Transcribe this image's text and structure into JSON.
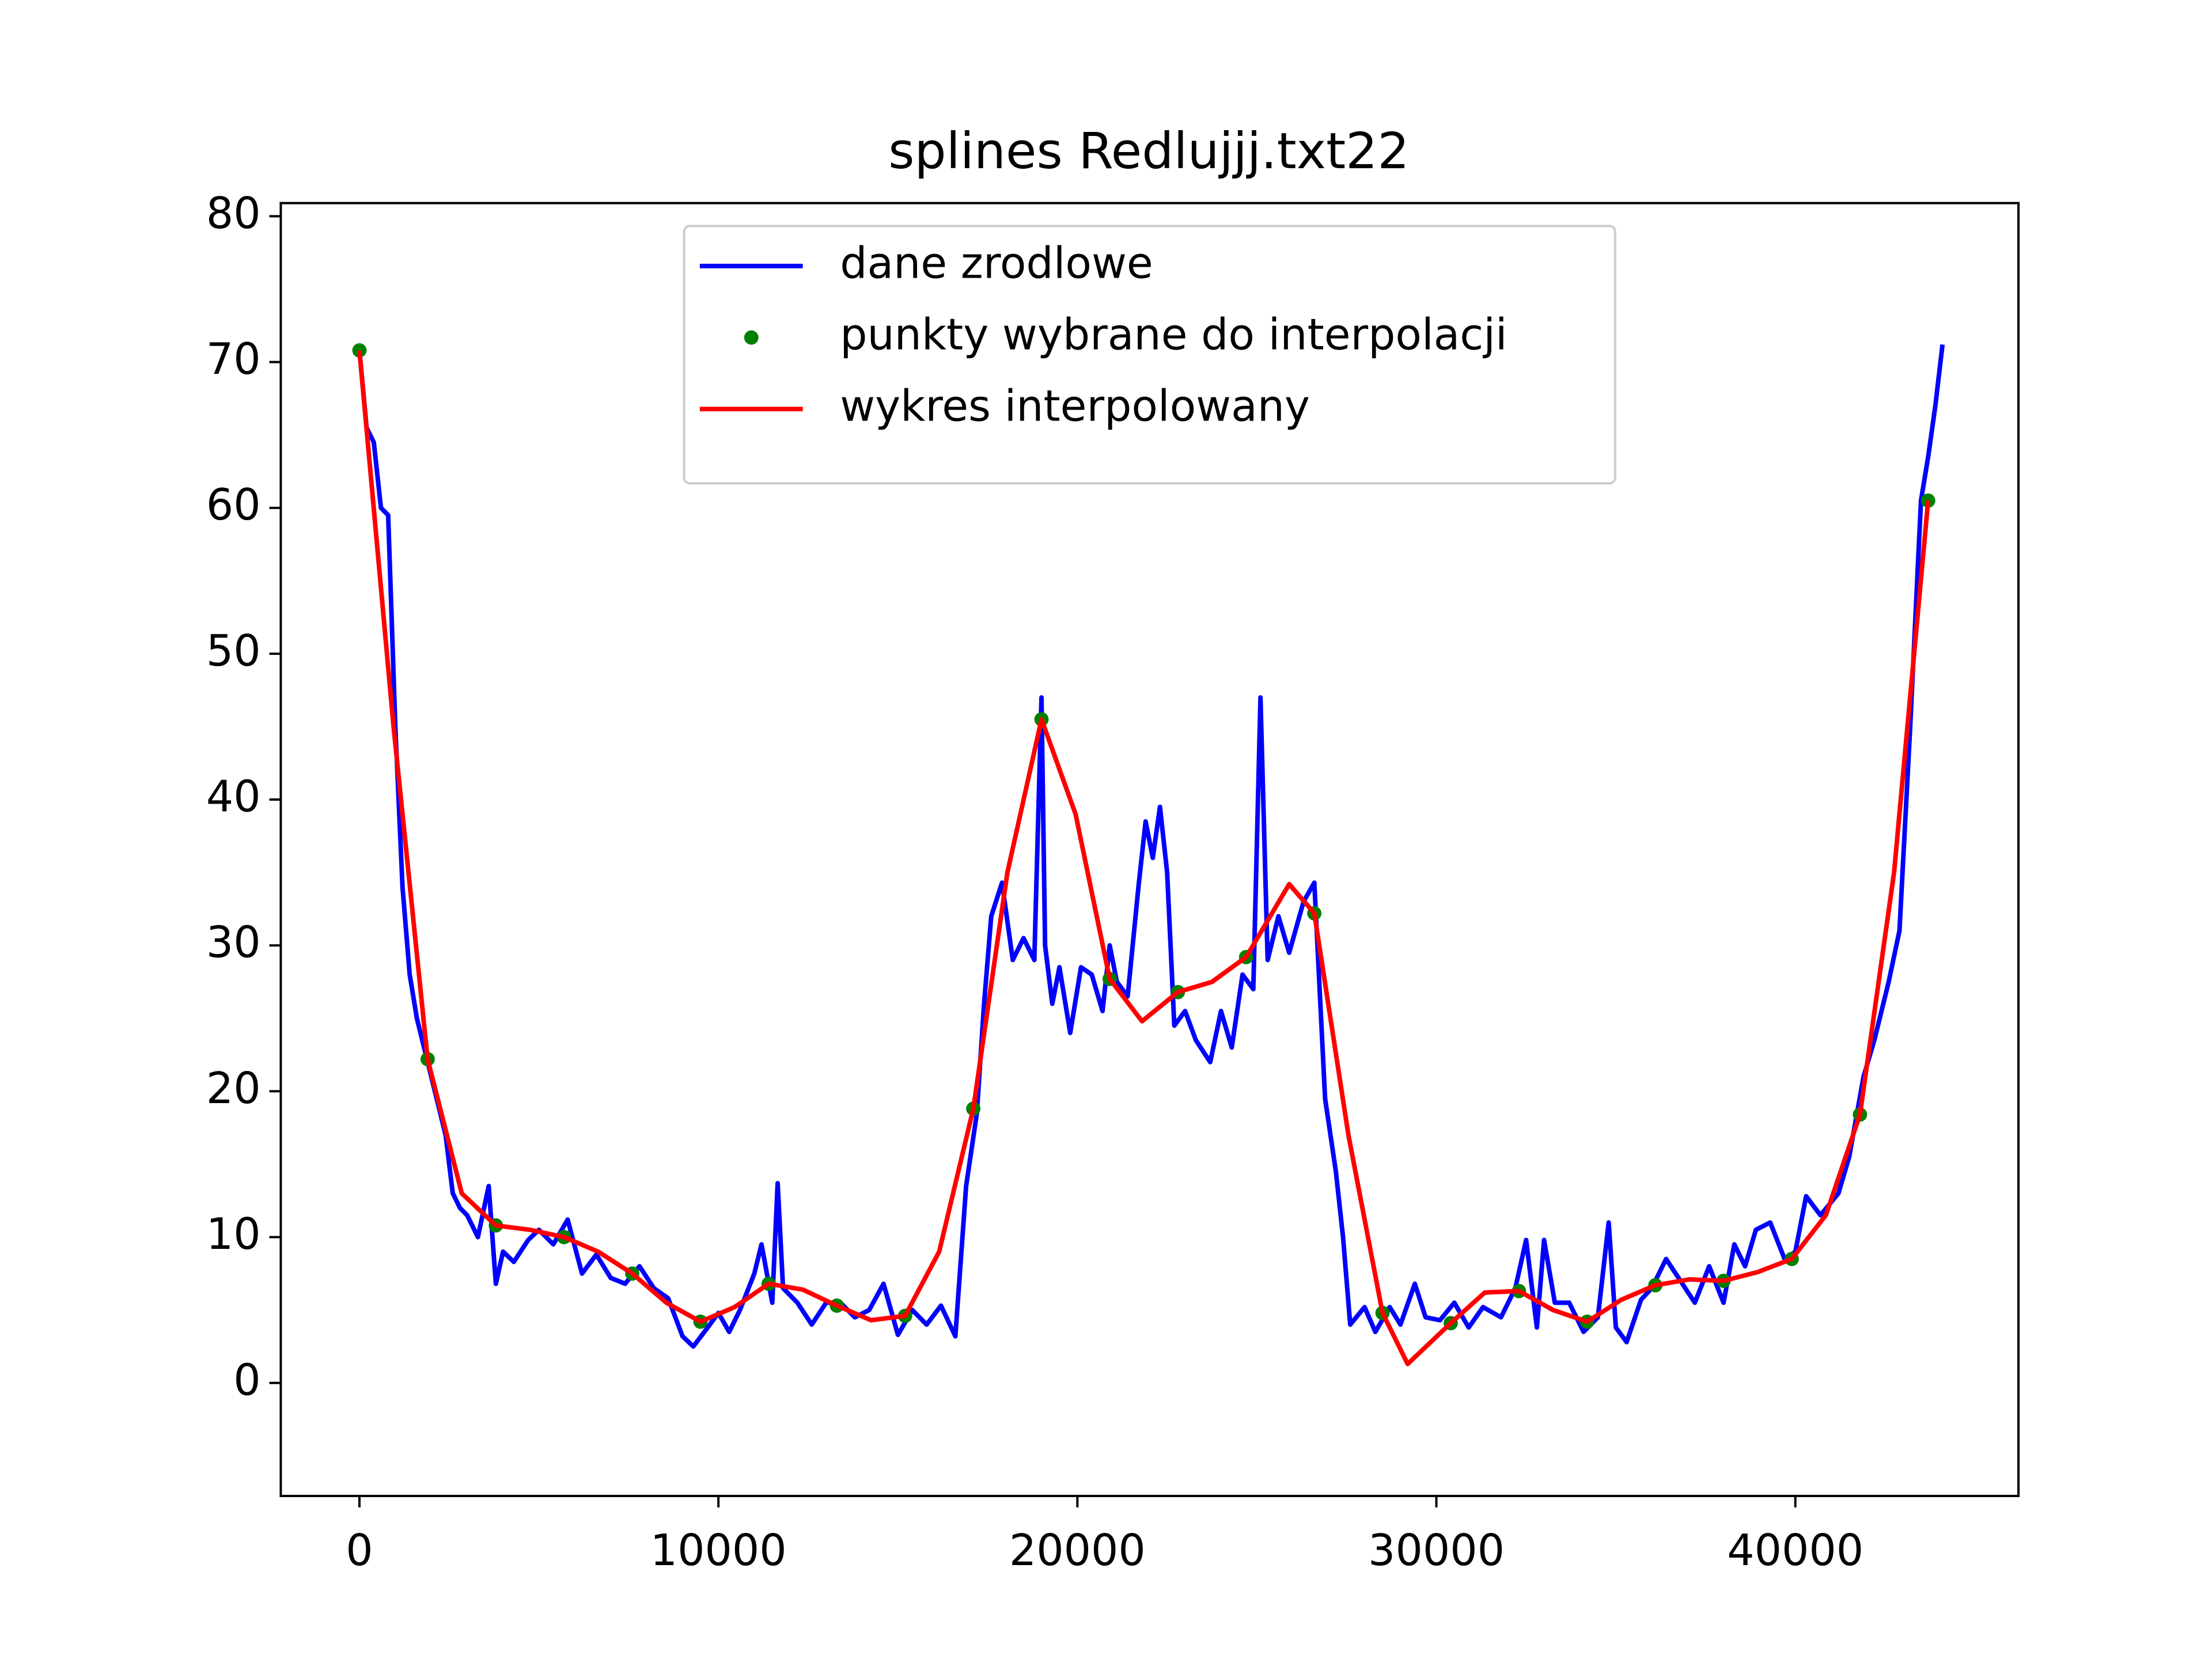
{
  "chart_data": {
    "type": "line",
    "title": "splines Redlujjj.txt22",
    "xlim": [
      -2191,
      46215
    ],
    "ylim": [
      -7.75,
      80.9
    ],
    "xticks": [
      0,
      10000,
      20000,
      30000,
      40000
    ],
    "yticks": [
      0,
      10,
      20,
      30,
      40,
      50,
      60,
      70,
      80
    ],
    "legend": "upper center",
    "series": [
      {
        "name": "dane zrodlowe",
        "color": "#0000ff",
        "style": "line",
        "x": [
          0,
          200,
          400,
          600,
          800,
          1000,
          1200,
          1400,
          1600,
          1800,
          2000,
          2200,
          2400,
          2600,
          2800,
          3000,
          3300,
          3600,
          3800,
          4000,
          4300,
          4700,
          5000,
          5400,
          5800,
          6200,
          6600,
          7000,
          7400,
          7800,
          8200,
          8600,
          9000,
          9300,
          9700,
          10000,
          10300,
          10600,
          11000,
          11200,
          11500,
          11650,
          11800,
          12200,
          12600,
          13000,
          13400,
          13800,
          14200,
          14600,
          15000,
          15400,
          15800,
          16200,
          16600,
          16900,
          17200,
          17400,
          17600,
          17900,
          18200,
          18500,
          18800,
          19000,
          19100,
          19300,
          19500,
          19800,
          20100,
          20400,
          20700,
          20900,
          21100,
          21400,
          21700,
          21900,
          22100,
          22300,
          22500,
          22700,
          23000,
          23300,
          23700,
          24000,
          24300,
          24600,
          24900,
          25100,
          25300,
          25600,
          25900,
          26300,
          26600,
          26900,
          27200,
          27400,
          27600,
          28000,
          28300,
          28700,
          29000,
          29400,
          29700,
          30100,
          30500,
          30900,
          31300,
          31800,
          32200,
          32500,
          32800,
          33000,
          33300,
          33700,
          34100,
          34500,
          34800,
          35000,
          35300,
          35700,
          36000,
          36400,
          36800,
          37200,
          37600,
          38000,
          38300,
          38600,
          38900,
          39300,
          39700,
          40000,
          40300,
          40700,
          41200,
          41500,
          41900,
          42200,
          42600,
          42900,
          43200,
          43500,
          43700,
          43900,
          44100
        ],
        "values": [
          70.8,
          65.5,
          64.5,
          60,
          59.5,
          45,
          34,
          28,
          25,
          23,
          21,
          19,
          17,
          13,
          12,
          11.5,
          10,
          13.5,
          6.8,
          9,
          8.3,
          9.8,
          10.5,
          9.5,
          11.2,
          7.5,
          8.8,
          7.2,
          6.8,
          8,
          6.5,
          5.8,
          3.2,
          2.5,
          3.8,
          4.8,
          3.5,
          5,
          7.5,
          9.5,
          5.5,
          13.7,
          6.5,
          5.5,
          4,
          5.5,
          5.5,
          4.5,
          5,
          6.8,
          3.3,
          5,
          4,
          5.3,
          3.2,
          13.5,
          18.5,
          26,
          32,
          34.3,
          29,
          30.5,
          29,
          47,
          30,
          26,
          28.5,
          24,
          28.5,
          28,
          25.5,
          30,
          27.5,
          26.5,
          34,
          38.5,
          36,
          39.5,
          35,
          24.5,
          25.5,
          23.5,
          22,
          25.5,
          23,
          28,
          27,
          47,
          29,
          32,
          29.5,
          33,
          34.3,
          19.5,
          14.5,
          10,
          4,
          5.2,
          3.5,
          5.2,
          4,
          6.8,
          4.5,
          4.3,
          5.5,
          3.8,
          5.2,
          4.5,
          6.5,
          9.8,
          3.8,
          9.8,
          5.5,
          5.5,
          3.5,
          4.5,
          11,
          3.8,
          2.8,
          5.7,
          6.5,
          8.5,
          7,
          5.5,
          8,
          5.5,
          9.5,
          8,
          10.5,
          11,
          8.5,
          9,
          12.8,
          11.5,
          13,
          15.5,
          21,
          23.5,
          27.5,
          31,
          45,
          60.5,
          63.5,
          67,
          71.2
        ]
      },
      {
        "name": "punkty wybrane do interpolacji",
        "color": "#008000",
        "style": "points",
        "x": [
          0,
          1900,
          3800,
          5700,
          7600,
          9500,
          11400,
          13300,
          15200,
          17100,
          19000,
          20900,
          22800,
          24700,
          26600,
          28500,
          30400,
          32300,
          34200,
          36100,
          38000,
          39900,
          41800,
          43700
        ],
        "values": [
          70.8,
          22.2,
          10.8,
          10,
          7.5,
          4.2,
          6.8,
          5.3,
          4.6,
          18.8,
          45.5,
          27.7,
          26.8,
          29.2,
          32.2,
          4.8,
          4.1,
          6.3,
          4.2,
          6.7,
          7.0,
          8.5,
          18.4,
          60.5
        ]
      },
      {
        "name": "wykres interpolowany",
        "color": "#ff0000",
        "style": "line",
        "x": [
          0,
          950,
          1900,
          2850,
          3800,
          4750,
          5700,
          6650,
          7600,
          8550,
          9500,
          10450,
          11400,
          12350,
          13300,
          14250,
          15200,
          16150,
          17100,
          18050,
          19000,
          19950,
          20900,
          21800,
          22800,
          23750,
          24700,
          25900,
          26600,
          27550,
          28500,
          29200,
          30400,
          31350,
          32300,
          33250,
          34200,
          35150,
          36100,
          37050,
          38000,
          38950,
          39900,
          40850,
          41800,
          42750,
          43700
        ],
        "values": [
          70.8,
          45,
          22.2,
          13,
          10.8,
          10.5,
          10,
          9,
          7.5,
          5.5,
          4.2,
          5.2,
          6.8,
          6.4,
          5.3,
          4.3,
          4.6,
          9,
          18.8,
          35,
          45.5,
          39,
          27.7,
          24.8,
          26.8,
          27.5,
          29.2,
          34.2,
          32.2,
          17,
          4.8,
          1.3,
          4.1,
          6.2,
          6.3,
          5,
          4.2,
          5.7,
          6.7,
          7.1,
          7.0,
          7.6,
          8.5,
          11.5,
          18.4,
          35,
          60.5
        ]
      }
    ]
  }
}
